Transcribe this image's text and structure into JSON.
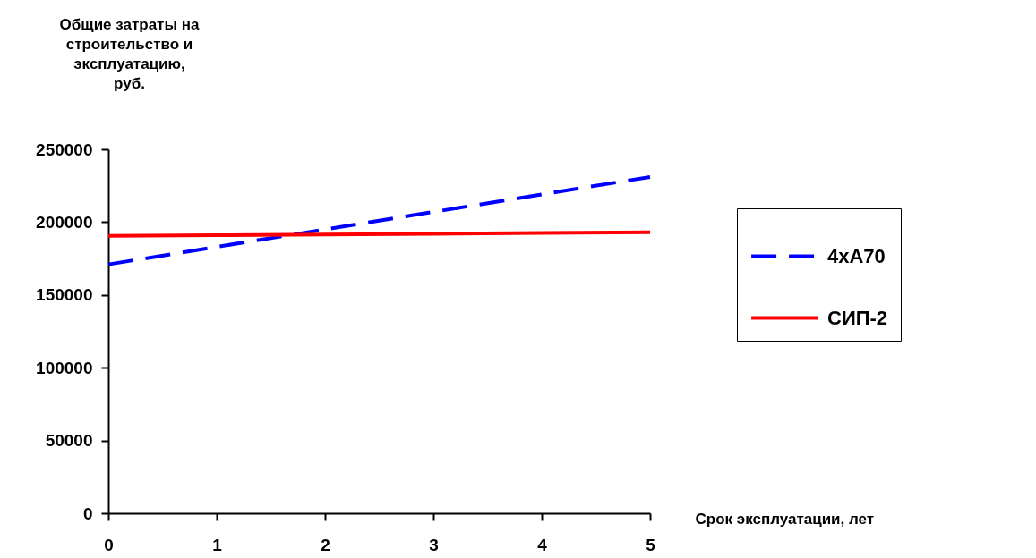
{
  "chart_data": {
    "type": "line",
    "ylabel": "Общие затраты на строительство и эксплуатацию, руб.",
    "xlabel": "Срок эксплуатации, лет",
    "x": [
      0,
      1,
      2,
      3,
      4,
      5
    ],
    "series": [
      {
        "name": "4хА70",
        "color": "#0000ff",
        "line_style": "dashed",
        "values": [
          171000,
          183000,
          195000,
          207000,
          219000,
          231000
        ]
      },
      {
        "name": "СИП-2",
        "color": "#ff0000",
        "line_style": "solid",
        "values": [
          190500,
          191000,
          191500,
          192000,
          192500,
          193000
        ]
      }
    ],
    "xlim": [
      0,
      5
    ],
    "xticks": [
      0,
      1,
      2,
      3,
      4,
      5
    ],
    "ylim": [
      0,
      250000
    ],
    "yticks": [
      0,
      50000,
      100000,
      150000,
      200000,
      250000
    ],
    "grid": false,
    "legend": "right",
    "marker": "none"
  }
}
